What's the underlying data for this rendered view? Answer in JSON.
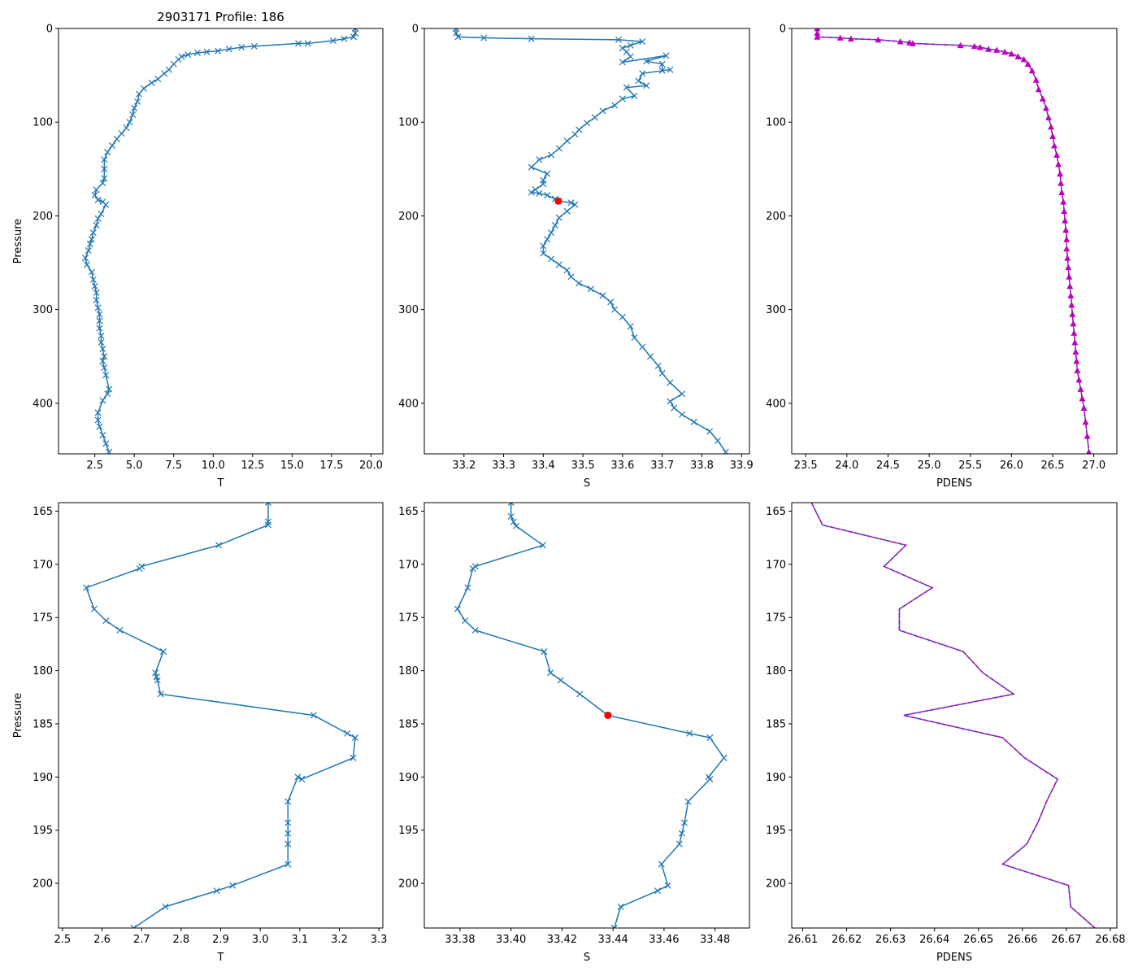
{
  "figure": {
    "title": "2903171 Profile: 186"
  },
  "colors": {
    "series": "#1f77b4",
    "pdens": "#bf00bf",
    "highlight": "#ff0000",
    "axis": "#000000"
  },
  "chart_data": [
    {
      "id": "top-T",
      "type": "line",
      "title": "2903171 Profile: 186",
      "xlabel": "T",
      "ylabel": "Pressure",
      "invert_y": true,
      "xlim": [
        0.2,
        20.75
      ],
      "ylim": [
        0,
        454
      ],
      "xticks": [
        2.5,
        5.0,
        7.5,
        10.0,
        12.5,
        15.0,
        17.5,
        20.0
      ],
      "xtick_labels": [
        "2.5",
        "5.0",
        "7.5",
        "10.0",
        "12.5",
        "15.0",
        "17.5",
        "20.0"
      ],
      "yticks": [
        0,
        100,
        200,
        300,
        400
      ],
      "ytick_labels": [
        "0",
        "100",
        "200",
        "300",
        "400"
      ],
      "marker": "x",
      "color": "#1f77b4",
      "x": [
        19.0,
        19.0,
        18.9,
        18.3,
        17.6,
        16.0,
        15.4,
        12.6,
        11.8,
        11.0,
        10.3,
        9.6,
        9.0,
        8.4,
        8.0,
        7.8,
        7.5,
        7.2,
        6.9,
        6.5,
        6.1,
        5.6,
        5.3,
        5.2,
        5.0,
        4.9,
        4.7,
        4.5,
        4.2,
        3.9,
        3.6,
        3.3,
        3.1,
        3.1,
        3.1,
        3.0,
        2.6,
        2.5,
        2.7,
        3.0,
        3.2,
        2.9,
        2.7,
        2.6,
        2.4,
        2.3,
        2.2,
        2.1,
        1.9,
        2.0,
        2.3,
        2.4,
        2.5,
        2.6,
        2.6,
        2.7,
        2.8,
        2.8,
        2.8,
        2.9,
        2.9,
        3.0,
        3.1,
        3.0,
        3.1,
        3.2,
        3.4,
        3.3,
        3.0,
        2.7,
        2.7,
        2.8,
        3.0,
        3.2,
        3.4
      ],
      "y": [
        0,
        5,
        9,
        11,
        13,
        16,
        16,
        19,
        20,
        22,
        24,
        25,
        26,
        28,
        30,
        33,
        38,
        44,
        48,
        54,
        58,
        64,
        70,
        78,
        85,
        92,
        100,
        106,
        112,
        118,
        125,
        132,
        140,
        150,
        160,
        165,
        172,
        178,
        183,
        185,
        188,
        198,
        203,
        210,
        218,
        225,
        230,
        237,
        245,
        252,
        260,
        268,
        275,
        282,
        290,
        298,
        305,
        312,
        320,
        328,
        335,
        342,
        350,
        355,
        362,
        370,
        385,
        390,
        397,
        410,
        418,
        425,
        434,
        443,
        452
      ]
    },
    {
      "id": "top-S",
      "type": "line",
      "xlabel": "S",
      "ylabel": "",
      "invert_y": true,
      "xlim": [
        33.1,
        33.92
      ],
      "ylim": [
        0,
        454
      ],
      "xticks": [
        33.2,
        33.3,
        33.4,
        33.5,
        33.6,
        33.7,
        33.8,
        33.9
      ],
      "xtick_labels": [
        "33.2",
        "33.3",
        "33.4",
        "33.5",
        "33.6",
        "33.7",
        "33.8",
        "33.9"
      ],
      "yticks": [
        0,
        100,
        200,
        300,
        400
      ],
      "ytick_labels": [
        "0",
        "100",
        "200",
        "300",
        "400"
      ],
      "marker": "x",
      "color": "#1f77b4",
      "highlight_point": {
        "x": 33.438,
        "y": 184.2
      },
      "x": [
        33.18,
        33.18,
        33.185,
        33.25,
        33.37,
        33.59,
        33.65,
        33.62,
        33.6,
        33.61,
        33.62,
        33.6,
        33.71,
        33.66,
        33.7,
        33.7,
        33.72,
        33.65,
        33.64,
        33.66,
        33.61,
        33.63,
        33.6,
        33.58,
        33.55,
        33.53,
        33.51,
        33.49,
        33.48,
        33.46,
        33.44,
        33.42,
        33.39,
        33.37,
        33.41,
        33.4,
        33.4,
        33.38,
        33.37,
        33.39,
        33.41,
        33.43,
        33.438,
        33.47,
        33.48,
        33.46,
        33.44,
        33.43,
        33.42,
        33.41,
        33.4,
        33.4,
        33.42,
        33.44,
        33.46,
        33.47,
        33.49,
        33.52,
        33.55,
        33.57,
        33.58,
        33.6,
        33.62,
        33.63,
        33.65,
        33.67,
        33.69,
        33.7,
        33.72,
        33.75,
        33.72,
        33.73,
        33.75,
        33.78,
        33.82,
        33.84,
        33.86
      ],
      "y": [
        0,
        5,
        9,
        10,
        11,
        12,
        14,
        18,
        21,
        25,
        30,
        36,
        29,
        35,
        38,
        45,
        44,
        48,
        56,
        61,
        63,
        72,
        75,
        82,
        88,
        95,
        101,
        108,
        113,
        120,
        128,
        135,
        140,
        148,
        155,
        162,
        166,
        172,
        175,
        176,
        178,
        182,
        184.2,
        186,
        188,
        195,
        202,
        210,
        218,
        225,
        232,
        240,
        246,
        252,
        258,
        265,
        272,
        278,
        285,
        292,
        300,
        308,
        318,
        330,
        340,
        350,
        360,
        368,
        378,
        390,
        398,
        405,
        412,
        420,
        430,
        440,
        452
      ]
    },
    {
      "id": "top-PDENS",
      "type": "line",
      "xlabel": "PDENS",
      "ylabel": "",
      "invert_y": true,
      "xlim": [
        23.33,
        27.28
      ],
      "ylim": [
        0,
        454
      ],
      "xticks": [
        23.5,
        24.0,
        24.5,
        25.0,
        25.5,
        26.0,
        26.5,
        27.0
      ],
      "xtick_labels": [
        "23.5",
        "24.0",
        "24.5",
        "25.0",
        "25.5",
        "26.0",
        "26.5",
        "27.0"
      ],
      "yticks": [
        0,
        100,
        200,
        300,
        400
      ],
      "ytick_labels": [
        "0",
        "100",
        "200",
        "300",
        "400"
      ],
      "marker": "triangle",
      "color": "#bf00bf",
      "linestyle": "dashed",
      "x": [
        23.64,
        23.64,
        23.64,
        23.92,
        24.05,
        24.38,
        24.65,
        24.76,
        24.8,
        25.38,
        25.55,
        25.62,
        25.72,
        25.82,
        25.92,
        26.0,
        26.08,
        26.15,
        26.2,
        26.25,
        26.3,
        26.33,
        26.38,
        26.42,
        26.45,
        26.48,
        26.5,
        26.52,
        26.55,
        26.57,
        26.59,
        26.6,
        26.61,
        26.63,
        26.64,
        26.65,
        26.66,
        26.67,
        26.67,
        26.68,
        26.69,
        26.7,
        26.71,
        26.72,
        26.73,
        26.74,
        26.75,
        26.76,
        26.77,
        26.78,
        26.79,
        26.8,
        26.82,
        26.84,
        26.86,
        26.88,
        26.9,
        26.92,
        26.94
      ],
      "y": [
        0,
        5,
        9,
        10,
        11,
        12,
        14,
        15,
        16,
        18,
        19,
        20,
        22,
        23,
        25,
        27,
        30,
        33,
        38,
        45,
        55,
        65,
        75,
        85,
        95,
        105,
        115,
        125,
        135,
        145,
        155,
        165,
        175,
        185,
        195,
        205,
        215,
        225,
        235,
        245,
        255,
        265,
        275,
        285,
        295,
        305,
        315,
        325,
        335,
        345,
        355,
        365,
        375,
        385,
        395,
        405,
        420,
        435,
        452
      ]
    },
    {
      "id": "bottom-T",
      "type": "line",
      "xlabel": "T",
      "ylabel": "Pressure",
      "invert_y": true,
      "xlim": [
        2.49,
        3.31
      ],
      "ylim": [
        164.2,
        204.2
      ],
      "xticks": [
        2.5,
        2.6,
        2.7,
        2.8,
        2.9,
        3.0,
        3.1,
        3.2,
        3.3
      ],
      "xtick_labels": [
        "2.5",
        "2.6",
        "2.7",
        "2.8",
        "2.9",
        "3.0",
        "3.1",
        "3.2",
        "3.3"
      ],
      "yticks": [
        165,
        170,
        175,
        180,
        185,
        190,
        195,
        200
      ],
      "ytick_labels": [
        "165",
        "170",
        "175",
        "180",
        "185",
        "190",
        "195",
        "200"
      ],
      "marker": "x",
      "color": "#1f77b4",
      "x": [
        3.02,
        3.02,
        3.02,
        2.895,
        2.7,
        2.695,
        2.56,
        2.58,
        2.61,
        2.645,
        2.755,
        2.735,
        2.738,
        2.74,
        2.748,
        3.135,
        3.22,
        3.24,
        3.235,
        3.105,
        3.095,
        3.07,
        3.07,
        3.07,
        3.07,
        3.07,
        2.93,
        2.89,
        2.76,
        2.68
      ],
      "y": [
        164.2,
        166.0,
        166.3,
        168.2,
        170.2,
        170.4,
        172.2,
        174.2,
        175.3,
        176.2,
        178.2,
        180.2,
        180.6,
        180.9,
        182.2,
        184.2,
        185.9,
        186.3,
        188.2,
        190.2,
        190.0,
        192.3,
        194.3,
        195.3,
        196.3,
        198.2,
        200.2,
        200.7,
        202.2,
        204.2
      ]
    },
    {
      "id": "bottom-S",
      "type": "line",
      "xlabel": "S",
      "ylabel": "",
      "invert_y": true,
      "xlim": [
        33.366,
        33.4935
      ],
      "ylim": [
        164.2,
        204.2
      ],
      "xticks": [
        33.38,
        33.4,
        33.42,
        33.44,
        33.46,
        33.48
      ],
      "xtick_labels": [
        "33.38",
        "33.40",
        "33.42",
        "33.44",
        "33.46",
        "33.48"
      ],
      "yticks": [
        165,
        170,
        175,
        180,
        185,
        190,
        195,
        200
      ],
      "ytick_labels": [
        "165",
        "170",
        "175",
        "180",
        "185",
        "190",
        "195",
        "200"
      ],
      "marker": "x",
      "color": "#1f77b4",
      "highlight_point": {
        "x": 33.438,
        "y": 184.2
      },
      "x": [
        33.4,
        33.4,
        33.401,
        33.402,
        33.4125,
        33.386,
        33.385,
        33.383,
        33.379,
        33.382,
        33.386,
        33.413,
        33.4155,
        33.4195,
        33.427,
        33.438,
        33.47,
        33.478,
        33.4835,
        33.4775,
        33.478,
        33.4695,
        33.468,
        33.467,
        33.466,
        33.459,
        33.4615,
        33.4575,
        33.443,
        33.4405
      ],
      "y": [
        164.2,
        165.5,
        166.0,
        166.4,
        168.2,
        170.2,
        170.4,
        172.2,
        174.2,
        175.3,
        176.2,
        178.2,
        180.2,
        180.9,
        182.2,
        184.2,
        185.9,
        186.3,
        188.2,
        190.0,
        190.2,
        192.3,
        194.3,
        195.3,
        196.3,
        198.2,
        200.2,
        200.7,
        202.2,
        204.2
      ]
    },
    {
      "id": "bottom-PDENS",
      "type": "line",
      "xlabel": "PDENS",
      "ylabel": "",
      "invert_y": true,
      "xlim": [
        26.6075,
        26.6815
      ],
      "ylim": [
        164.2,
        204.2
      ],
      "xticks": [
        26.61,
        26.62,
        26.63,
        26.64,
        26.65,
        26.66,
        26.67,
        26.68
      ],
      "xtick_labels": [
        "26.61",
        "26.62",
        "26.63",
        "26.64",
        "26.65",
        "26.66",
        "26.67",
        "26.68"
      ],
      "yticks": [
        165,
        170,
        175,
        180,
        185,
        190,
        195,
        200
      ],
      "ytick_labels": [
        "165",
        "170",
        "175",
        "180",
        "185",
        "190",
        "195",
        "200"
      ],
      "marker": "none",
      "color": "#bf00bf",
      "linestyle": "dashed",
      "x": [
        26.612,
        26.6145,
        26.6335,
        26.6285,
        26.6395,
        26.632,
        26.632,
        26.6465,
        26.651,
        26.658,
        26.633,
        26.6555,
        26.6605,
        26.668,
        26.6655,
        26.6635,
        26.661,
        26.6555,
        26.6705,
        26.671,
        26.6765
      ],
      "y": [
        164.2,
        166.3,
        168.2,
        170.2,
        172.2,
        174.2,
        176.2,
        178.2,
        180.2,
        182.2,
        184.2,
        186.3,
        188.2,
        190.2,
        192.3,
        194.3,
        196.3,
        198.2,
        200.2,
        202.2,
        204.2
      ]
    }
  ]
}
